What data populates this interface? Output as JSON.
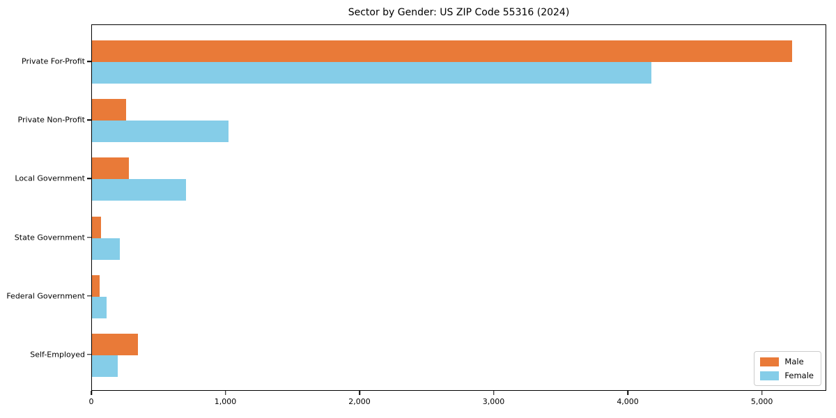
{
  "chart_data": {
    "type": "bar",
    "orientation": "horizontal",
    "title": "Sector by Gender: US ZIP Code 55316 (2024)",
    "xlabel": "",
    "ylabel": "",
    "categories": [
      "Private For-Profit",
      "Private Non-Profit",
      "Local Government",
      "State Government",
      "Federal Government",
      "Self-Employed"
    ],
    "series": [
      {
        "name": "Male",
        "color": "#e97a38",
        "values": [
          5220,
          255,
          275,
          65,
          55,
          345
        ]
      },
      {
        "name": "Female",
        "color": "#85cde8",
        "values": [
          4170,
          1020,
          700,
          205,
          110,
          190
        ]
      }
    ],
    "xlim": [
      0,
      5480
    ],
    "xticks": [
      0,
      1000,
      2000,
      3000,
      4000,
      5000
    ],
    "xtick_labels": [
      "0",
      "1,000",
      "2,000",
      "3,000",
      "4,000",
      "5,000"
    ],
    "grid": false,
    "legend_position": "lower right",
    "plot_background": "#ffffff",
    "text_color": "#000000"
  }
}
